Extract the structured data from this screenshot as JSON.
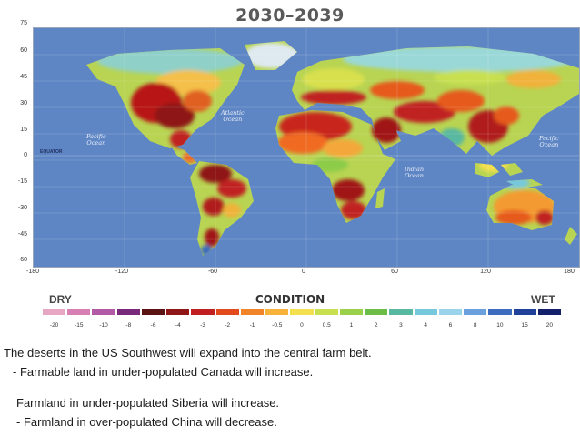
{
  "figure": {
    "title": "2030–2039",
    "y_axis_ticks": [
      "75",
      "60",
      "45",
      "30",
      "15",
      "0",
      "-15",
      "-30",
      "-45",
      "-60"
    ],
    "x_axis_ticks": [
      "-180",
      "-120",
      "-60",
      "0",
      "60",
      "120",
      "180"
    ],
    "equator_label": "EQUATOR",
    "ocean_labels": [
      {
        "key": "pacific_w",
        "line1": "Pacific",
        "line2": "Ocean"
      },
      {
        "key": "atlantic",
        "line1": "Atlantic",
        "line2": "Ocean"
      },
      {
        "key": "indian",
        "line1": "Indian",
        "line2": "Ocean"
      },
      {
        "key": "pacific_e",
        "line1": "Pacific",
        "line2": "Ocean"
      }
    ],
    "legend": {
      "left_label": "DRY",
      "center_label": "CONDITION",
      "right_label": "WET",
      "values": [
        "-20",
        "-15",
        "-10",
        "-8",
        "-6",
        "-4",
        "-3",
        "-2",
        "-1",
        "-0.5",
        "0",
        "0.5",
        "1",
        "2",
        "3",
        "4",
        "6",
        "8",
        "10",
        "15",
        "20"
      ],
      "colors": [
        "#e7a7c3",
        "#d680b4",
        "#b25aa6",
        "#7a2a7a",
        "#5a1414",
        "#8e1616",
        "#c02020",
        "#e04a1c",
        "#f08428",
        "#f6b23a",
        "#f4e04e",
        "#c8e050",
        "#9ad04a",
        "#6cbc48",
        "#58b8a0",
        "#76c8dc",
        "#9ad4ec",
        "#6aa0dc",
        "#3c6cc0",
        "#20409a",
        "#14206a"
      ]
    },
    "colors": {
      "ocean": "#5f86c4",
      "map_border": "#9aa6b8"
    }
  },
  "captions": [
    "The deserts in the US Southwest will expand into the central farm belt.",
    " - Farmable land in under-populated Canada will increase.",
    "Farmland in under-populated Siberia will increase.",
    " - Farmland in over-populated China will decrease."
  ]
}
